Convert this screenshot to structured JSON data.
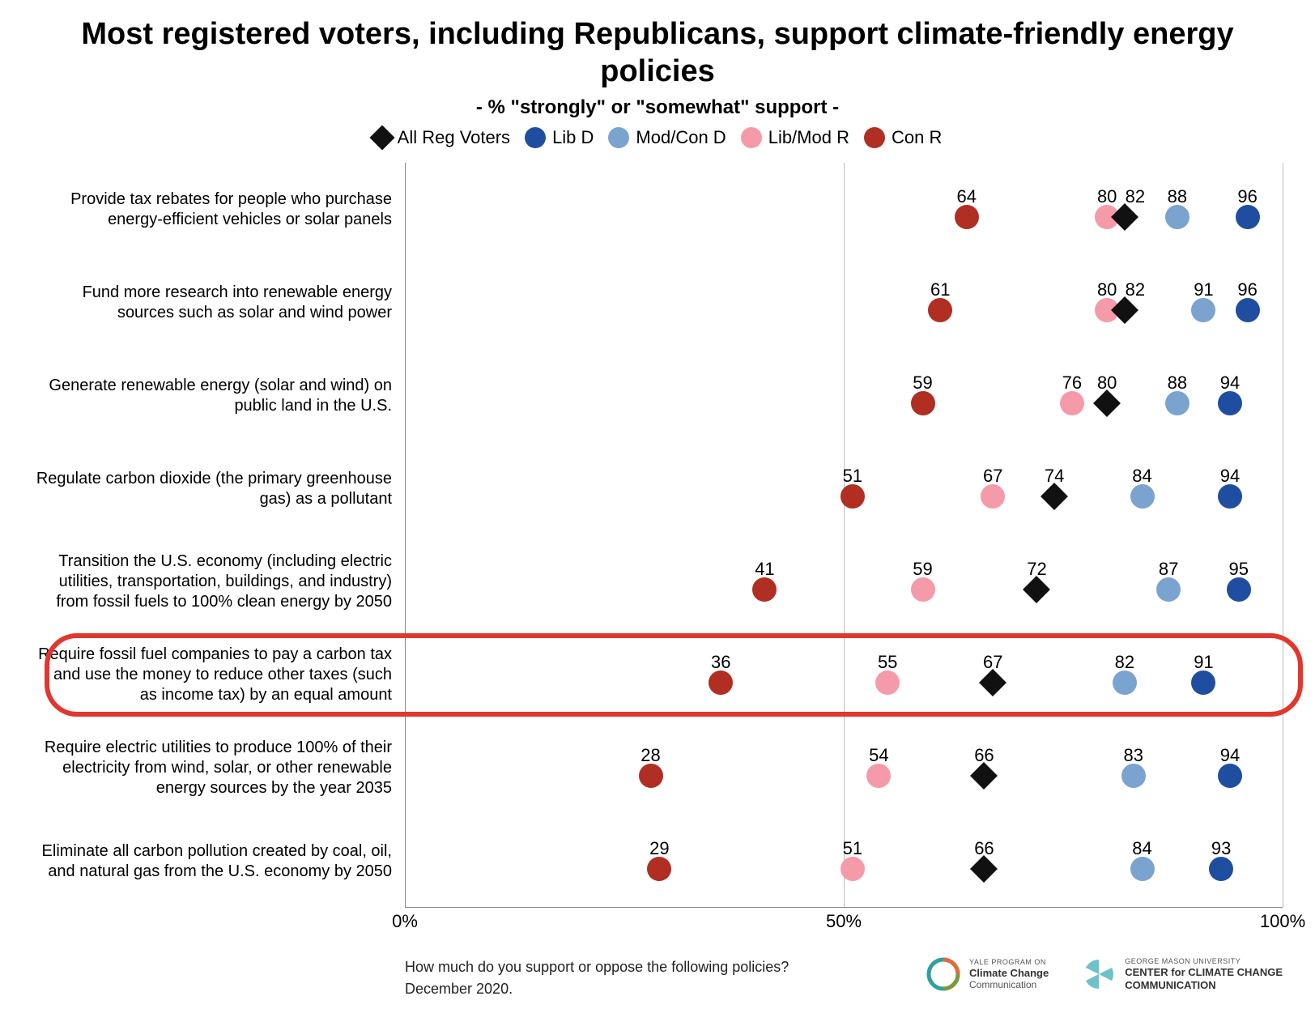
{
  "title": "Most registered voters, including Republicans, support climate-friendly energy policies",
  "subtitle": "- % \"strongly\" or \"somewhat\" support -",
  "title_fontsize": 38,
  "subtitle_fontsize": 24,
  "legend": [
    {
      "key": "all",
      "label": "All Reg Voters",
      "shape": "diamond",
      "color": "#111111"
    },
    {
      "key": "libd",
      "label": "Lib D",
      "shape": "circle",
      "color": "#1f4ea1"
    },
    {
      "key": "modd",
      "label": "Mod/Con D",
      "shape": "circle",
      "color": "#7aa3cf"
    },
    {
      "key": "libr",
      "label": "Lib/Mod R",
      "shape": "circle",
      "color": "#f59aa9"
    },
    {
      "key": "conr",
      "label": "Con R",
      "shape": "circle",
      "color": "#b02e22"
    }
  ],
  "series_colors": {
    "all": "#111111",
    "libd": "#1f4ea1",
    "modd": "#7aa3cf",
    "libr": "#f59aa9",
    "conr": "#b02e22"
  },
  "xaxis": {
    "min": 0,
    "max": 100,
    "ticks": [
      {
        "value": 0,
        "label": "0%"
      },
      {
        "value": 50,
        "label": "50%"
      },
      {
        "value": 100,
        "label": "100%"
      }
    ],
    "gridlines": [
      50,
      100
    ],
    "grid_color": "#bbbbbb"
  },
  "rows": [
    {
      "label": "Provide tax rebates for people who purchase energy-efficient vehicles or solar panels",
      "highlight": false,
      "values": {
        "conr": 64,
        "libr": 80,
        "all": 82,
        "modd": 88,
        "libd": 96
      }
    },
    {
      "label": "Fund more research into renewable energy sources such as solar and wind power",
      "highlight": false,
      "values": {
        "conr": 61,
        "libr": 80,
        "all": 82,
        "modd": 91,
        "libd": 96
      }
    },
    {
      "label": "Generate renewable energy (solar and wind) on public land in the U.S.",
      "highlight": false,
      "values": {
        "conr": 59,
        "libr": 76,
        "all": 80,
        "modd": 88,
        "libd": 94
      }
    },
    {
      "label": "Regulate carbon dioxide (the primary greenhouse gas) as a pollutant",
      "highlight": false,
      "values": {
        "conr": 51,
        "libr": 67,
        "all": 74,
        "modd": 84,
        "libd": 94
      }
    },
    {
      "label": "Transition the U.S. economy (including electric utilities, transportation, buildings, and industry) from fossil fuels to 100% clean energy by 2050",
      "highlight": false,
      "values": {
        "conr": 41,
        "libr": 59,
        "all": 72,
        "modd": 87,
        "libd": 95
      }
    },
    {
      "label": "Require fossil fuel companies to pay a carbon tax and use the money to reduce other taxes (such as income tax) by an equal amount",
      "highlight": true,
      "values": {
        "conr": 36,
        "libr": 55,
        "all": 67,
        "modd": 82,
        "libd": 91
      }
    },
    {
      "label": "Require electric utilities to produce 100% of their electricity from wind, solar, or other renewable energy sources by the year 2035",
      "highlight": false,
      "values": {
        "conr": 28,
        "libr": 54,
        "all": 66,
        "modd": 83,
        "libd": 94
      }
    },
    {
      "label": "Eliminate all carbon pollution created by coal, oil, and natural gas from the U.S. economy by 2050",
      "highlight": false,
      "values": {
        "conr": 29,
        "libr": 51,
        "all": 66,
        "modd": 84,
        "libd": 93
      }
    }
  ],
  "marker_style": {
    "circle_diameter": 30,
    "diamond_size": 24,
    "label_fontsize": 22,
    "label_offset_top": -38
  },
  "highlight_style": {
    "color": "#e2362e",
    "border_width": 6,
    "radius": 40
  },
  "footer": {
    "question": "How much do you support or oppose the following policies?",
    "date": "December 2020.",
    "logos": {
      "yale": {
        "top": "YALE PROGRAM ON",
        "main": "Climate Change",
        "sub": "Communication"
      },
      "gmu": {
        "top": "GEORGE MASON UNIVERSITY",
        "main": "CENTER for CLIMATE CHANGE",
        "sub": "COMMUNICATION"
      }
    }
  },
  "background_color": "#ffffff"
}
